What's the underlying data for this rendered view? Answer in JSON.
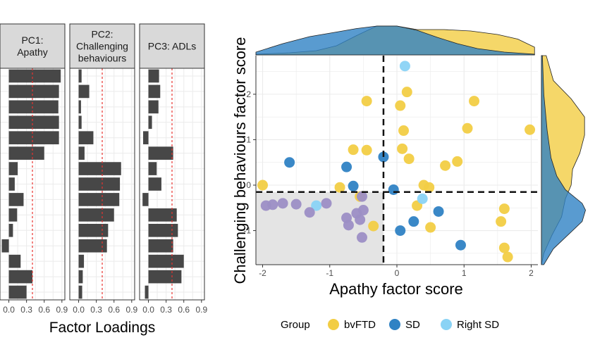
{
  "chart_data": [
    {
      "type": "bar",
      "orientation": "horizontal",
      "xlabel": "Factor Loadings",
      "xlim": [
        -0.15,
        0.95
      ],
      "x_ticks": [
        "0.0",
        "0.3",
        "0.6",
        "0.9"
      ],
      "reference_line": 0.4,
      "reference_line_style": "red dashed",
      "facets": [
        {
          "title_lines": [
            "PC1:",
            "Apathy"
          ],
          "values": [
            0.88,
            0.85,
            0.84,
            0.85,
            0.85,
            0.6,
            0.15,
            0.1,
            0.25,
            0.14,
            0.07,
            -0.12,
            0.2,
            0.4,
            0.3
          ]
        },
        {
          "title_lines": [
            "PC2:",
            "Challenging",
            "behaviours"
          ],
          "values": [
            0.05,
            0.18,
            0.04,
            0.05,
            0.25,
            0.1,
            0.72,
            0.7,
            0.69,
            0.6,
            0.5,
            0.48,
            0.09,
            0.07,
            0.06
          ]
        },
        {
          "title_lines": [
            "PC3: ADLs"
          ],
          "values": [
            0.18,
            0.2,
            0.17,
            0.06,
            -0.09,
            0.42,
            0.14,
            0.22,
            -0.1,
            0.48,
            0.5,
            0.42,
            0.6,
            0.56,
            -0.06
          ]
        }
      ]
    },
    {
      "type": "scatter",
      "xlabel": "Apathy factor score",
      "ylabel": "Challenging behaviours factor score",
      "xlim": [
        -2.1,
        2.1
      ],
      "ylim": [
        -1.75,
        2.85
      ],
      "x_ticks": [
        "-2",
        "-1",
        "0",
        "1",
        "2"
      ],
      "y_ticks": [
        "-1",
        "0",
        "1",
        "2"
      ],
      "threshold_x": -0.2,
      "threshold_y": -0.15,
      "shaded_quadrant": "bottom-left",
      "legend": {
        "title": "Group",
        "position": "bottom"
      },
      "series": [
        {
          "name": "bvFTD",
          "color": "#f2cd44",
          "points": [
            [
              -2.0,
              0.0
            ],
            [
              -0.85,
              -0.05
            ],
            [
              -0.55,
              -0.25
            ],
            [
              -0.35,
              -0.9
            ],
            [
              -0.45,
              1.85
            ],
            [
              -0.65,
              0.78
            ],
            [
              -0.45,
              0.77
            ],
            [
              0.05,
              1.75
            ],
            [
              0.15,
              2.05
            ],
            [
              0.1,
              1.2
            ],
            [
              0.08,
              0.8
            ],
            [
              0.18,
              0.58
            ],
            [
              0.4,
              0.0
            ],
            [
              0.48,
              -0.05
            ],
            [
              0.3,
              -0.45
            ],
            [
              0.5,
              -0.93
            ],
            [
              0.72,
              0.43
            ],
            [
              0.9,
              0.52
            ],
            [
              1.05,
              1.25
            ],
            [
              1.15,
              1.85
            ],
            [
              1.98,
              1.22
            ],
            [
              1.6,
              -0.52
            ],
            [
              1.55,
              -0.8
            ],
            [
              1.6,
              -1.38
            ],
            [
              1.65,
              -1.58
            ]
          ]
        },
        {
          "name": "SD",
          "color": "#2f82c4",
          "points": [
            [
              -1.6,
              0.5
            ],
            [
              -0.75,
              0.4
            ],
            [
              -0.65,
              -0.02
            ],
            [
              -0.2,
              0.62
            ],
            [
              -0.05,
              -0.1
            ],
            [
              0.05,
              -1.0
            ],
            [
              0.25,
              -0.8
            ],
            [
              0.62,
              -0.58
            ],
            [
              0.95,
              -1.32
            ]
          ]
        },
        {
          "name": "Right SD",
          "color": "#8ad3f5",
          "points": [
            [
              0.12,
              2.62
            ],
            [
              0.38,
              -0.3
            ],
            [
              -1.2,
              -0.45
            ]
          ]
        },
        {
          "name": "",
          "color": "#9c8ec5",
          "points": [
            [
              -1.95,
              -0.45
            ],
            [
              -1.85,
              -0.43
            ],
            [
              -1.7,
              -0.4
            ],
            [
              -1.5,
              -0.42
            ],
            [
              -1.3,
              -0.6
            ],
            [
              -1.05,
              -0.4
            ],
            [
              -0.75,
              -0.72
            ],
            [
              -0.72,
              -0.88
            ],
            [
              -0.6,
              -0.62
            ],
            [
              -0.5,
              -0.55
            ],
            [
              -0.55,
              -0.76
            ],
            [
              -0.52,
              -1.15
            ],
            [
              -0.52,
              -0.25
            ]
          ]
        }
      ],
      "marginal_density": {
        "x": [
          {
            "name": "bvFTD",
            "color": "#f2cd44",
            "density": [
              [
                -2.1,
                0.02
              ],
              [
                -1.6,
                0.06
              ],
              [
                -1.2,
                0.12
              ],
              [
                -0.9,
                0.26
              ],
              [
                -0.6,
                0.55
              ],
              [
                -0.3,
                0.82
              ],
              [
                0.0,
                0.82
              ],
              [
                0.3,
                0.72
              ],
              [
                0.7,
                0.72
              ],
              [
                1.1,
                0.68
              ],
              [
                1.5,
                0.58
              ],
              [
                1.8,
                0.45
              ],
              [
                2.05,
                0.22
              ]
            ]
          },
          {
            "name": "SD",
            "color": "#2f82c4",
            "density": [
              [
                -2.1,
                0.08
              ],
              [
                -1.7,
                0.32
              ],
              [
                -1.3,
                0.52
              ],
              [
                -0.9,
                0.65
              ],
              [
                -0.6,
                0.75
              ],
              [
                -0.3,
                0.82
              ],
              [
                0.0,
                0.82
              ],
              [
                0.3,
                0.7
              ],
              [
                0.6,
                0.5
              ],
              [
                0.9,
                0.32
              ],
              [
                1.2,
                0.18
              ],
              [
                1.6,
                0.08
              ],
              [
                2.05,
                0.02
              ]
            ]
          }
        ],
        "y": [
          {
            "name": "bvFTD",
            "color": "#f2cd44",
            "density": [
              [
                2.85,
                0.1
              ],
              [
                2.3,
                0.25
              ],
              [
                1.9,
                0.62
              ],
              [
                1.5,
                0.9
              ],
              [
                1.1,
                0.9
              ],
              [
                0.7,
                0.8
              ],
              [
                0.35,
                0.65
              ],
              [
                0.0,
                0.62
              ],
              [
                -0.3,
                0.5
              ],
              [
                -0.7,
                0.42
              ],
              [
                -1.1,
                0.22
              ],
              [
                -1.5,
                0.05
              ],
              [
                -1.75,
                0.0
              ]
            ]
          },
          {
            "name": "SD",
            "color": "#2f82c4",
            "density": [
              [
                2.85,
                0.02
              ],
              [
                2.0,
                0.05
              ],
              [
                1.2,
                0.12
              ],
              [
                0.6,
                0.2
              ],
              [
                0.2,
                0.32
              ],
              [
                -0.1,
                0.5
              ],
              [
                -0.4,
                0.85
              ],
              [
                -0.55,
                0.92
              ],
              [
                -0.8,
                0.85
              ],
              [
                -1.1,
                0.55
              ],
              [
                -1.4,
                0.25
              ],
              [
                -1.75,
                0.05
              ]
            ]
          }
        ]
      }
    }
  ]
}
